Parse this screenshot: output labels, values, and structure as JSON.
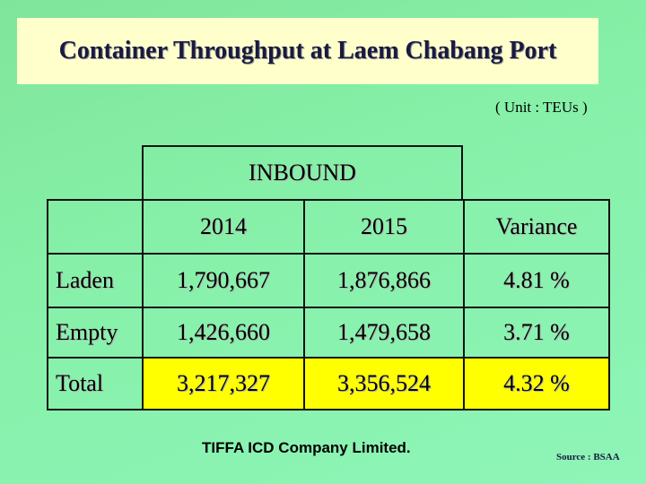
{
  "title": "Container Throughput at Laem Chabang Port",
  "unit": "( Unit : TEUs )",
  "table": {
    "group_header": "INBOUND",
    "columns": [
      "2014",
      "2015",
      "Variance"
    ],
    "rows": [
      {
        "label": "Laden",
        "y2014": "1,790,667",
        "y2015": "1,876,866",
        "variance": "4.81 %"
      },
      {
        "label": "Empty",
        "y2014": "1,426,660",
        "y2015": "1,479,658",
        "variance": "3.71 %"
      },
      {
        "label": "Total",
        "y2014": "3,217,327",
        "y2015": "3,356,524",
        "variance": "4.32 %"
      }
    ]
  },
  "footer": {
    "company": "TIFFA  ICD Company Limited.",
    "source": "Source : BSAA"
  },
  "colors": {
    "background": "#86f0a8",
    "title_box": "#ffffcc",
    "total_row": "#ffff00"
  }
}
